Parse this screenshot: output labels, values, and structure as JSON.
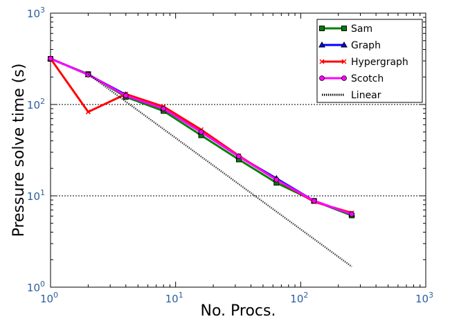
{
  "chart_data": {
    "type": "line",
    "title": "",
    "xlabel": "No. Procs.",
    "ylabel": "Pressure solve time (s)",
    "xscale": "log",
    "yscale": "log",
    "xlim": [
      1,
      1000
    ],
    "ylim": [
      1,
      1000
    ],
    "xticks": [
      {
        "base": "10",
        "exp": "0",
        "v": 1
      },
      {
        "base": "10",
        "exp": "1",
        "v": 10
      },
      {
        "base": "10",
        "exp": "2",
        "v": 100
      },
      {
        "base": "10",
        "exp": "3",
        "v": 1000
      }
    ],
    "yticks": [
      {
        "base": "10",
        "exp": "0",
        "v": 1
      },
      {
        "base": "10",
        "exp": "1",
        "v": 10
      },
      {
        "base": "10",
        "exp": "2",
        "v": 100
      },
      {
        "base": "10",
        "exp": "3",
        "v": 1000
      }
    ],
    "grid": "horizontal dotted at major ticks",
    "legend_position": "top-right",
    "x": [
      1,
      2,
      4,
      8,
      16,
      32,
      64,
      128,
      256
    ],
    "series": [
      {
        "name": "Sam",
        "color": "#008000",
        "marker": "square",
        "values": [
          316,
          215,
          121,
          85,
          46,
          25,
          13.9,
          8.8,
          6.1
        ]
      },
      {
        "name": "Graph",
        "color": "#0000ff",
        "marker": "triangle",
        "values": [
          318,
          212,
          128,
          90,
          50,
          27,
          15.5,
          8.8,
          6.3
        ]
      },
      {
        "name": "Hypergraph",
        "color": "#ff0000",
        "marker": "x",
        "values": [
          318,
          83,
          130,
          95,
          53,
          27.5,
          15,
          8.6,
          6.5
        ]
      },
      {
        "name": "Scotch",
        "color": "#ff00ff",
        "marker": "circle",
        "values": [
          318,
          212,
          125,
          90,
          50,
          27,
          15,
          8.8,
          6.3
        ]
      },
      {
        "name": "Linear",
        "color": "#000000",
        "marker": "none",
        "dotted": true,
        "x": [
          2,
          256
        ],
        "values": [
          215,
          1.68
        ]
      }
    ]
  }
}
